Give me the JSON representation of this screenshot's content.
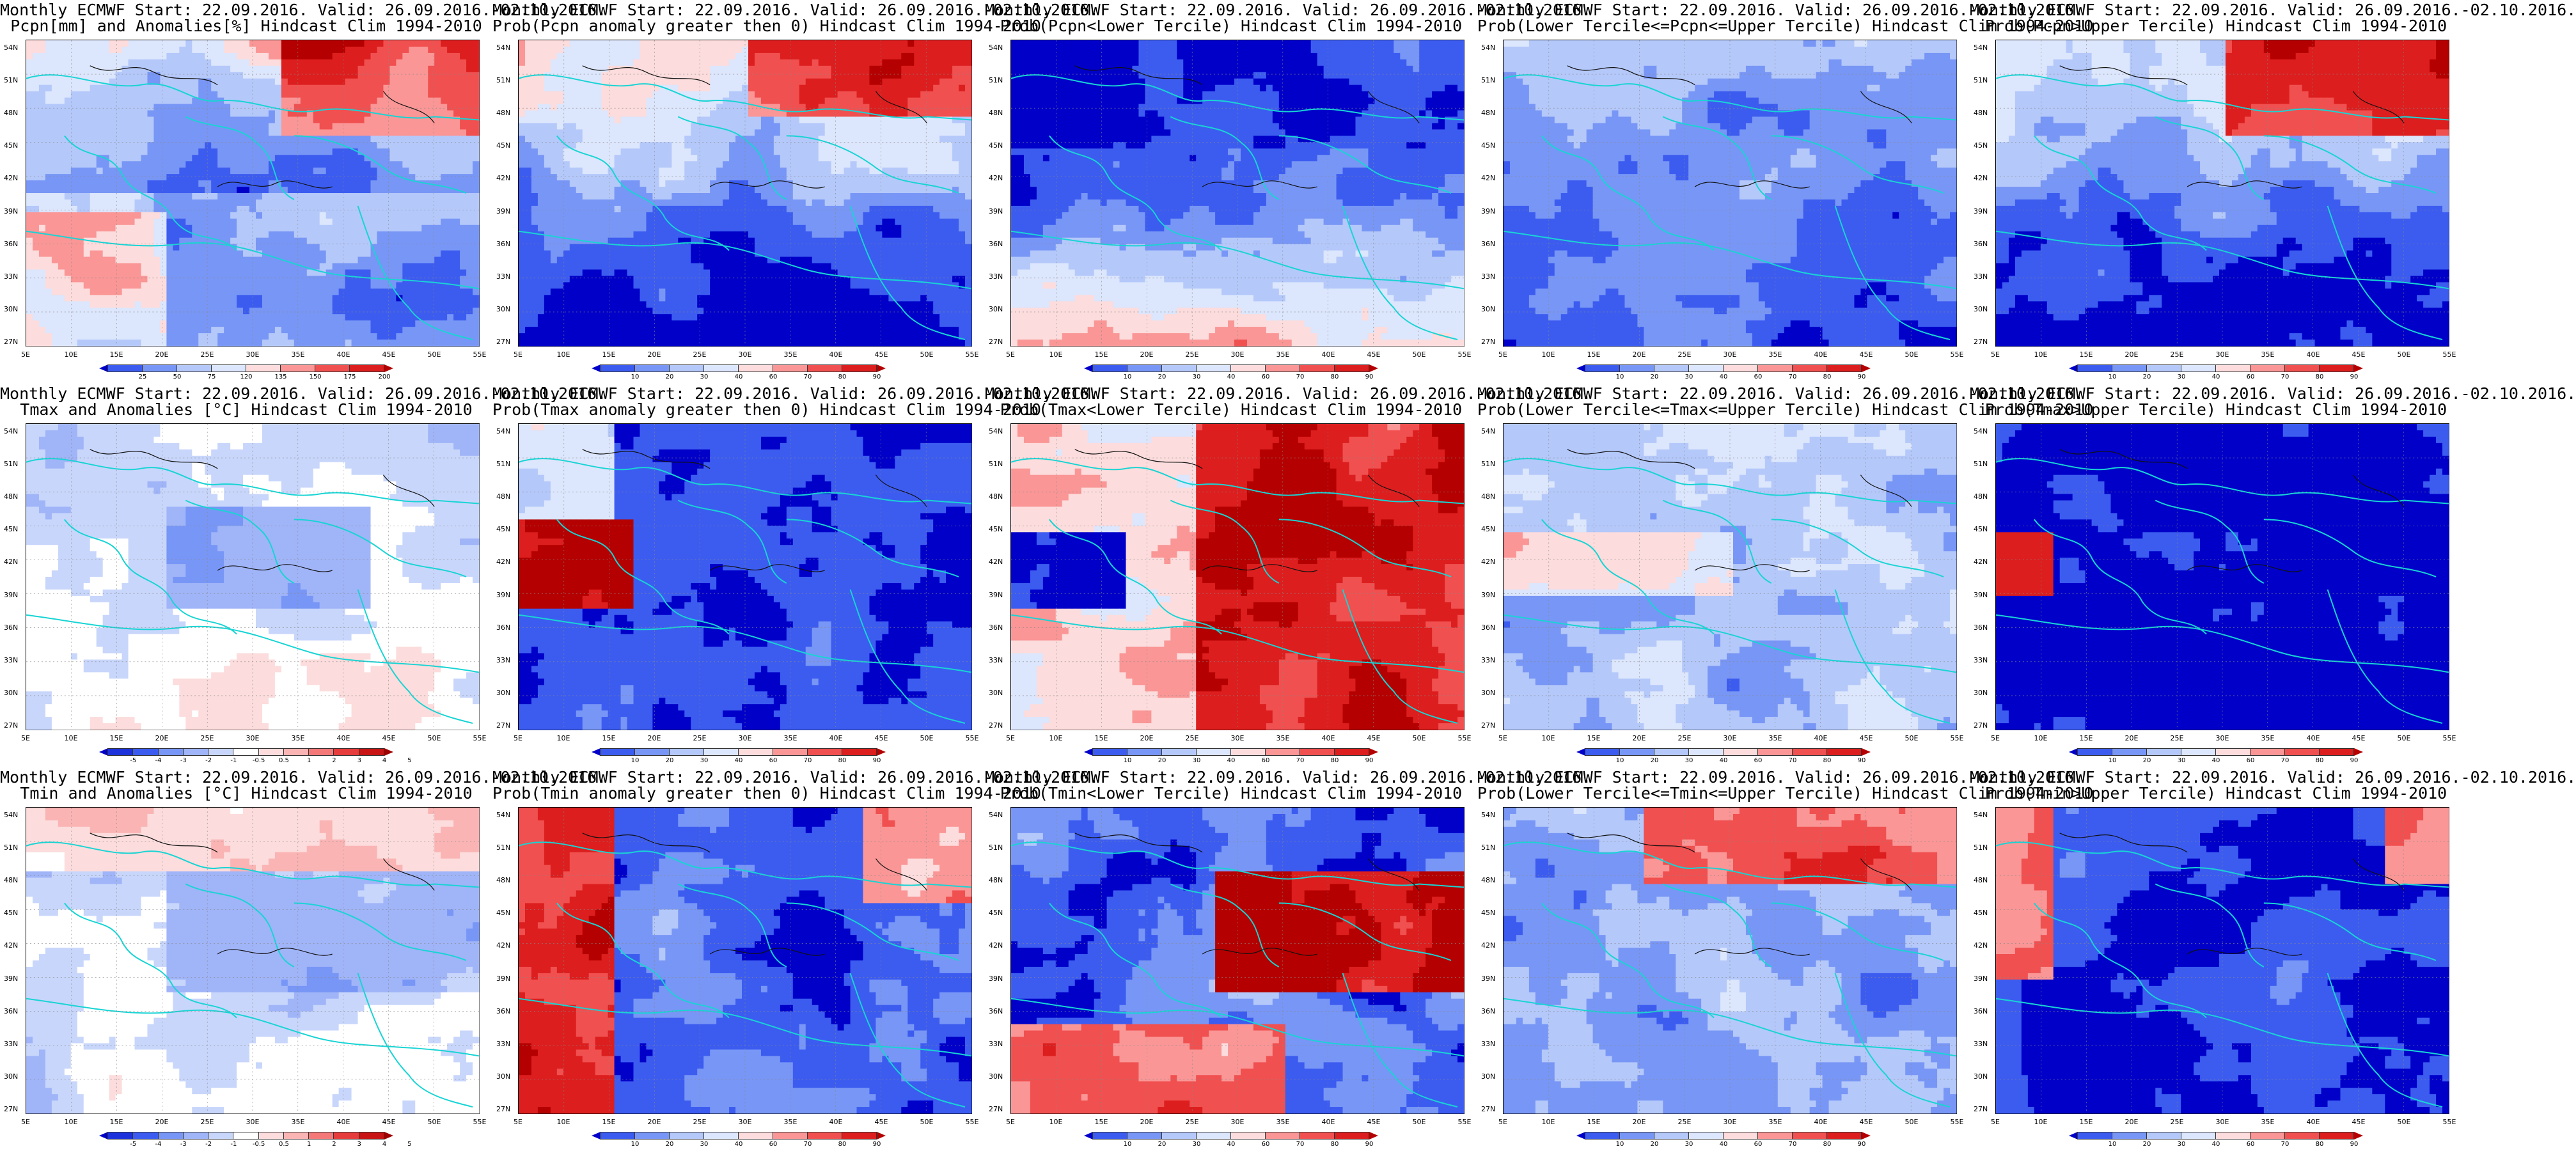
{
  "meta": {
    "lat_labels": [
      "54N",
      "51N",
      "48N",
      "45N",
      "42N",
      "39N",
      "36N",
      "33N",
      "30N",
      "27N"
    ],
    "lon_labels": [
      "5E",
      "10E",
      "15E",
      "20E",
      "25E",
      "30E",
      "35E",
      "40E",
      "45E",
      "50E",
      "55E"
    ]
  },
  "palettes": {
    "precip_anom": {
      "labels": [
        "25",
        "50",
        "75",
        "120",
        "135",
        "150",
        "175",
        "200"
      ],
      "colors": [
        "#0000c8",
        "#3c5cf0",
        "#7896f5",
        "#b4c8fa",
        "#dce6fc",
        "#fcdcdc",
        "#fa9696",
        "#f05050",
        "#dc1e1e",
        "#b40000"
      ]
    },
    "prob": {
      "labels": [
        "10",
        "20",
        "30",
        "40",
        "60",
        "70",
        "80",
        "90"
      ],
      "colors": [
        "#0000c8",
        "#3c5cf0",
        "#7896f5",
        "#b4c8fa",
        "#dce6fc",
        "#fcdcdc",
        "#fa9696",
        "#f05050",
        "#dc1e1e",
        "#b40000"
      ]
    },
    "temp_anom": {
      "labels": [
        "-5",
        "-4",
        "-3",
        "-2",
        "-1",
        "-0.5",
        "0.5",
        "1",
        "2",
        "3",
        "4",
        "5"
      ],
      "colors": [
        "#0000c8",
        "#1e32dc",
        "#3c5cf0",
        "#7896f5",
        "#a0b4f8",
        "#c8d6fb",
        "#ffffff",
        "#fcdcdc",
        "#fab4b4",
        "#f57878",
        "#e63c3c",
        "#c81414",
        "#a00000"
      ]
    }
  },
  "panels": [
    {
      "line1": "Monthly ECMWF Start: 22.09.2016. Valid: 26.09.2016.-02.10.2016.",
      "line2": "Pcpn[mm] and Anomalies[%] Hindcast Clim 1994-2010",
      "palette": "precip_anom",
      "pattern": "precip"
    },
    {
      "line1": "Monthly ECMWF Start: 22.09.2016. Valid: 26.09.2016.-02.10.2016.",
      "line2": "Prob(Pcpn anomaly greater then 0) Hindcast Clim 1994-2010",
      "palette": "prob",
      "pattern": "pgt"
    },
    {
      "line1": "Monthly ECMWF Start: 22.09.2016. Valid: 26.09.2016.-02.10.2016.",
      "line2": "Prob(Pcpn<Lower Tercile) Hindcast Clim 1994-2010",
      "palette": "prob",
      "pattern": "plow"
    },
    {
      "line1": "Monthly ECMWF Start: 22.09.2016. Valid: 26.09.2016.-02.10.2016.",
      "line2": "Prob(Lower Tercile<=Pcpn<=Upper Tercile) Hindcast Clim 1994-2010",
      "palette": "prob",
      "pattern": "pmid"
    },
    {
      "line1": "Monthly ECMWF Start: 22.09.2016. Valid: 26.09.2016.-02.10.2016.",
      "line2": "Prob(Pcpn>Upper Tercile) Hindcast Clim 1994-2010",
      "palette": "prob",
      "pattern": "pup"
    },
    {
      "line1": "Monthly ECMWF Start: 22.09.2016. Valid: 26.09.2016.-02.10.2016.",
      "line2": "Tmax and Anomalies [°C] Hindcast Clim 1994-2010",
      "palette": "temp_anom",
      "pattern": "tmaxanom"
    },
    {
      "line1": "Monthly ECMWF Start: 22.09.2016. Valid: 26.09.2016.-02.10.2016.",
      "line2": "Prob(Tmax anomaly greater then 0) Hindcast Clim 1994-2010",
      "palette": "prob",
      "pattern": "tgt"
    },
    {
      "line1": "Monthly ECMWF Start: 22.09.2016. Valid: 26.09.2016.-02.10.2016.",
      "line2": "Prob(Tmax<Lower Tercile) Hindcast Clim 1994-2010",
      "palette": "prob",
      "pattern": "tlow"
    },
    {
      "line1": "Monthly ECMWF Start: 22.09.2016. Valid: 26.09.2016.-02.10.2016.",
      "line2": "Prob(Lower Tercile<=Tmax<=Upper Tercile) Hindcast Clim 1994-2010",
      "palette": "prob",
      "pattern": "tmid"
    },
    {
      "line1": "Monthly ECMWF Start: 22.09.2016. Valid: 26.09.2016.-02.10.2016.",
      "line2": "Prob(Tmax>Upper Tercile) Hindcast Clim 1994-2010",
      "palette": "prob",
      "pattern": "tup"
    },
    {
      "line1": "Monthly ECMWF Start: 22.09.2016. Valid: 26.09.2016.-02.10.2016.",
      "line2": "Tmin and Anomalies [°C] Hindcast Clim 1994-2010",
      "palette": "temp_anom",
      "pattern": "tminanom"
    },
    {
      "line1": "Monthly ECMWF Start: 22.09.2016. Valid: 26.09.2016.-02.10.2016.",
      "line2": "Prob(Tmin anomaly greater then 0) Hindcast Clim 1994-2010",
      "palette": "prob",
      "pattern": "ngt"
    },
    {
      "line1": "Monthly ECMWF Start: 22.09.2016. Valid: 26.09.2016.-02.10.2016.",
      "line2": "Prob(Tmin<Lower Tercile) Hindcast Clim 1994-2010",
      "palette": "prob",
      "pattern": "nlow"
    },
    {
      "line1": "Monthly ECMWF Start: 22.09.2016. Valid: 26.09.2016.-02.10.2016.",
      "line2": "Prob(Lower Tercile<=Tmin<=Upper Tercile) Hindcast Clim 1994-2010",
      "palette": "prob",
      "pattern": "nmid"
    },
    {
      "line1": "Monthly ECMWF Start: 22.09.2016. Valid: 26.09.2016.-02.10.2016.",
      "line2": "Prob(Tmin>Upper Tercile) Hindcast Clim 1994-2010",
      "palette": "prob",
      "pattern": "nup"
    }
  ]
}
